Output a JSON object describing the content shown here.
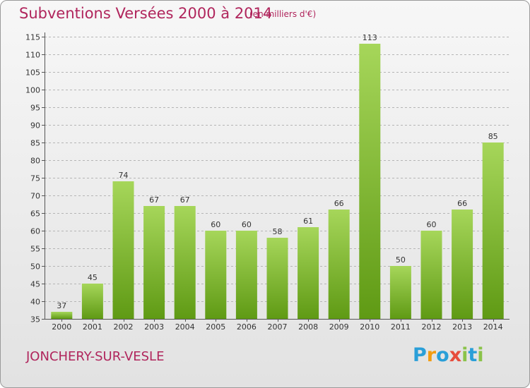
{
  "title": "Subventions Versées 2000 à 2014",
  "subtitle": "(en milliers d'€)",
  "commune": "JONCHERY-SUR-VESLE",
  "logo": {
    "letters": [
      "P",
      "r",
      "o",
      "x",
      "i",
      "t",
      "i"
    ],
    "colors": [
      "#2a9fd8",
      "#f39c12",
      "#2a9fd8",
      "#e74c3c",
      "#8bc34a",
      "#2a9fd8",
      "#8bc34a"
    ]
  },
  "colors": {
    "bar_light": "#a6d65a",
    "bar_dark": "#5f9a14",
    "title": "#b0255c",
    "grid": "#b5b5b5"
  },
  "chart_data": {
    "type": "bar",
    "categories": [
      "2000",
      "2001",
      "2002",
      "2003",
      "2004",
      "2005",
      "2006",
      "2007",
      "2008",
      "2009",
      "2010",
      "2011",
      "2012",
      "2013",
      "2014"
    ],
    "values": [
      37,
      45,
      74,
      67,
      67,
      60,
      60,
      58,
      61,
      66,
      113,
      50,
      60,
      66,
      85
    ],
    "value_labels": [
      "37",
      "45",
      "74",
      "67",
      "67",
      "60",
      "60",
      "58",
      "61",
      "66",
      "113",
      "50",
      "60",
      "66",
      "85"
    ],
    "ylim": [
      35,
      115
    ],
    "yticks": [
      "35",
      "40",
      "45",
      "50",
      "55",
      "60",
      "65",
      "70",
      "75",
      "80",
      "85",
      "90",
      "95",
      "100",
      "105",
      "110",
      "115"
    ],
    "grid": true,
    "xlabel": "",
    "ylabel": ""
  }
}
